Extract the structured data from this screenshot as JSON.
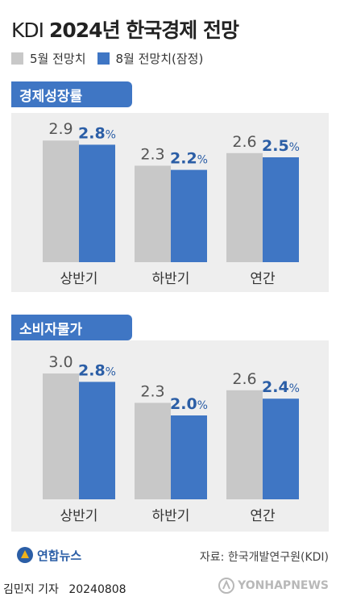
{
  "header": {
    "title_prefix": "KDI",
    "title_main": "2024년 한국경제 전망"
  },
  "legend": [
    {
      "label": "5월 전망치",
      "color": "#c8c8c8"
    },
    {
      "label": "8월 전망치(잠정)",
      "color": "#3f76c4"
    }
  ],
  "colors": {
    "may_bar": "#c8c8c8",
    "aug_bar": "#3f76c4",
    "may_value_text": "#555555",
    "aug_value_text": "#2b5ea6",
    "panel_bg": "#eeeeee"
  },
  "chart_data": [
    {
      "type": "bar",
      "title": "경제성장률",
      "categories": [
        "상반기",
        "하반기",
        "연간"
      ],
      "series": [
        {
          "name": "5월 전망치",
          "values": [
            2.9,
            2.3,
            2.6
          ],
          "labels": [
            "2.9",
            "2.3",
            "2.6"
          ]
        },
        {
          "name": "8월 전망치(잠정)",
          "values": [
            2.8,
            2.2,
            2.5
          ],
          "labels": [
            "2.8",
            "2.2",
            "2.5"
          ]
        }
      ],
      "unit": "%",
      "ylim": [
        0,
        3.2
      ]
    },
    {
      "type": "bar",
      "title": "소비자물가",
      "categories": [
        "상반기",
        "하반기",
        "연간"
      ],
      "series": [
        {
          "name": "5월 전망치",
          "values": [
            3.0,
            2.3,
            2.6
          ],
          "labels": [
            "3.0",
            "2.3",
            "2.6"
          ]
        },
        {
          "name": "8월 전망치(잠정)",
          "values": [
            2.8,
            2.0,
            2.4
          ],
          "labels": [
            "2.8",
            "2.0",
            "2.4"
          ]
        }
      ],
      "unit": "%",
      "ylim": [
        0,
        3.3
      ]
    }
  ],
  "footer": {
    "logo_text": "연합뉴스",
    "source": "자료: 한국개발연구원(KDI)",
    "byline": "김민지 기자",
    "date": "20240808",
    "watermark": "YONHAPNEWS"
  }
}
